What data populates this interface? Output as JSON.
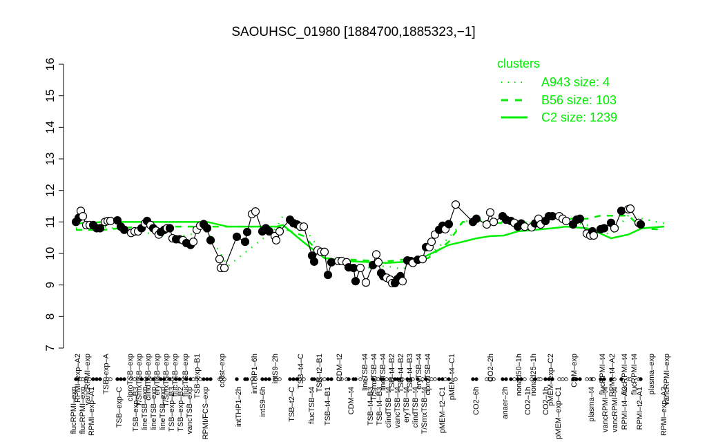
{
  "chart_data": {
    "type": "line",
    "title": "SAOUHSC_01980 [1884700,1885323,−1]",
    "xlabel": "",
    "ylabel": "",
    "ylim": [
      7,
      16
    ],
    "y_ticks": [
      "7",
      "8",
      "9",
      "10",
      "11",
      "12",
      "13",
      "14",
      "15",
      "16"
    ],
    "grid": false,
    "legend": {
      "title": "clusters",
      "placement": "top-right",
      "color": "#00ee00",
      "entries": [
        {
          "label": "A943 size: 4",
          "style": "dotted"
        },
        {
          "label": "B56 size: 103",
          "style": "dashed"
        },
        {
          "label": "C2 size: 1239",
          "style": "solid"
        }
      ]
    },
    "points": {
      "values": [
        11.0,
        11.13,
        11.35,
        11.18,
        10.9,
        10.9,
        10.9,
        10.8,
        10.8,
        11.0,
        11.03,
        11.03,
        11.05,
        10.85,
        10.75,
        10.65,
        10.7,
        10.7,
        10.8,
        10.95,
        11.03,
        10.9,
        10.8,
        10.72,
        10.6,
        10.68,
        10.75,
        10.8,
        10.8,
        10.48,
        10.45,
        10.45,
        10.42,
        10.33,
        10.27,
        10.37,
        10.75,
        10.88,
        10.93,
        10.8,
        10.42,
        9.82,
        9.54,
        9.54,
        10.53,
        10.37,
        10.68,
        11.25,
        11.33,
        10.7,
        10.8,
        10.7,
        10.55,
        10.42,
        10.7,
        11.07,
        10.96,
        10.92,
        10.85,
        10.85,
        9.93,
        9.74,
        10.1,
        10.05,
        10.05,
        9.32,
        9.72,
        9.76,
        9.76,
        9.72,
        9.56,
        9.54,
        9.12,
        9.54,
        9.08,
        9.63,
        9.97,
        9.72,
        9.38,
        9.28,
        9.23,
        9.17,
        9.06,
        9.06,
        9.19,
        9.28,
        9.12,
        9.78,
        9.76,
        9.7,
        9.8,
        9.82,
        10.2,
        10.2,
        10.37,
        10.6,
        10.75,
        10.88,
        10.77,
        10.93,
        11.55,
        11.0,
        11.1,
        10.92,
        11.3,
        11.0,
        11.18,
        11.07,
        11.03,
        10.97,
        10.85,
        10.95,
        10.85,
        10.83,
        10.95,
        11.1,
        10.92,
        11.03,
        11.18,
        11.18,
        11.18,
        11.1,
        11.03,
        10.92,
        11.07,
        11.1,
        10.63,
        10.57,
        10.7,
        10.57,
        10.77,
        10.8,
        10.97,
        10.8,
        11.35,
        11.4,
        11.42,
        10.97,
        10.92
      ],
      "filled": [
        1,
        1,
        0,
        0,
        0,
        0,
        1,
        1,
        1,
        0,
        0,
        0,
        1,
        1,
        1,
        0,
        0,
        0,
        1,
        0,
        1,
        0,
        1,
        0,
        0,
        1,
        1,
        0,
        1,
        0,
        1,
        1,
        0,
        1,
        1,
        0,
        0,
        0,
        1,
        1,
        1,
        0,
        0,
        0,
        1,
        1,
        1,
        0,
        0,
        1,
        1,
        1,
        0,
        0,
        0,
        1,
        1,
        1,
        0,
        0,
        1,
        1,
        0,
        0,
        0,
        1,
        1,
        0,
        0,
        0,
        1,
        1,
        1,
        0,
        0,
        1,
        0,
        0,
        1,
        1,
        0,
        0,
        0,
        1,
        1,
        1,
        0,
        1,
        1,
        0,
        1,
        0,
        1,
        0,
        0,
        0,
        1,
        1,
        0,
        1,
        0,
        1,
        1,
        0,
        0,
        0,
        1,
        1,
        1,
        0,
        1,
        1,
        0,
        0,
        1,
        0,
        0,
        1,
        1,
        1,
        0,
        0,
        0,
        1,
        1,
        1,
        0,
        0,
        1,
        0,
        1,
        1,
        1,
        0,
        1,
        0,
        0,
        0,
        1
      ]
    },
    "series": [
      {
        "name": "C2 size: 1239",
        "style": "solid",
        "values": [
          10.95,
          11.0,
          11.0,
          11.0,
          11.0,
          10.85,
          10.85,
          10.9,
          10.35,
          9.85,
          9.75,
          9.7,
          9.73,
          9.75,
          9.95,
          10.27,
          10.37,
          10.48,
          10.55,
          10.57,
          10.7,
          10.8,
          10.85,
          10.8,
          10.63,
          10.48,
          10.6,
          10.8,
          10.85
        ]
      },
      {
        "name": "B56 size: 103",
        "style": "dashed",
        "values": [
          10.75,
          10.75,
          10.85,
          10.85,
          10.85,
          10.85,
          10.85,
          10.8,
          10.55,
          9.85,
          9.8,
          9.75,
          9.8,
          9.8,
          9.85,
          10.37,
          11.0,
          11.0,
          11.0,
          10.95,
          10.95,
          11.1,
          11.1,
          11.1,
          11.2,
          11.2,
          11.2,
          10.8,
          10.75
        ]
      },
      {
        "name": "A943 size: 4",
        "style": "dotted",
        "values": [
          10.8,
          10.85,
          10.7,
          10.5,
          10.7,
          9.6,
          10.8,
          11.2,
          10.85,
          9.9,
          9.5,
          9.6,
          9.5,
          9.7,
          9.9,
          10.5,
          11.0,
          11.1,
          10.95,
          11.0,
          10.9,
          11.1,
          11.05,
          10.9,
          10.7,
          10.6,
          11.2,
          11.1,
          10.95
        ]
      }
    ],
    "x_labels_top": [
      "RPMI–exp–A2",
      "vancRPMI–exp",
      "TSB–exp–A",
      "ciproTSB–exp",
      "T/SmxTSB–exp",
      "clindTSB–exp",
      "eryTSB–exp",
      "T/SmxTSB–exp",
      "flucTSB–exp",
      "flucTSB–exp",
      "TSB–exp–B1",
      "colist–exp",
      "intTHP1–6h",
      "intS9–2h",
      "TSB–t4–C",
      "TSB–t2–B1",
      "CDM–t2",
      "lineTSB–t4",
      "T/SmxTSB–t4",
      "lineTSB–t4",
      "TSB–t4–B2",
      "TSB–t4–B2",
      "TSB–t4–B3",
      "eryTSB–t4",
      "ciproTSB–t4",
      "pMEM–t4–C1",
      "CO2–2h",
      "nonad50–1h",
      "nonad25–1h",
      "pMEM–exp–C2",
      "CDM–exp",
      "flucRPMI–t4",
      "RPMI–t4–A2",
      "flucRPMI–t4",
      "flucRPMI–t4",
      "plasma–exp",
      "vancRPMI–exp"
    ],
    "x_labels_bottom": [
      "flucRPMI–exp",
      "flucRPMI–exp",
      "RPMI–exp–A1",
      "TSB–exp–C",
      "TSB–exp–B3",
      "lineTSB–exp",
      "lineTSB–exp",
      "lineTSB–exp",
      "TSB–exp–B3",
      "TSB–exp–B2",
      "vancTSB–exp",
      "RPMI/FCS–exp",
      "intTHP1–2h",
      "intS9–6h",
      "TSB–t2–C",
      "flucTSB–t4",
      "TSB–t4–B1",
      "CDM–t4",
      "TSB–t4–B3",
      "TSB–t4–B3",
      "clindTSB–t4",
      "vancTSB–t4",
      "eryTSB–t4",
      "clindTSB–t4",
      "T/SmxTSB–t4",
      "pMEM–t2–C1",
      "CO2–6h",
      "anaer–2h",
      "CO2–1h",
      "CO2–1h",
      "pMEM–exp–C1",
      "plasma–t4",
      "vancRPMI–t4",
      "vancRPMI–t4",
      "RPMI–t4–A2",
      "RPMI–t2–A1",
      "RPMI–exp–A2"
    ]
  }
}
